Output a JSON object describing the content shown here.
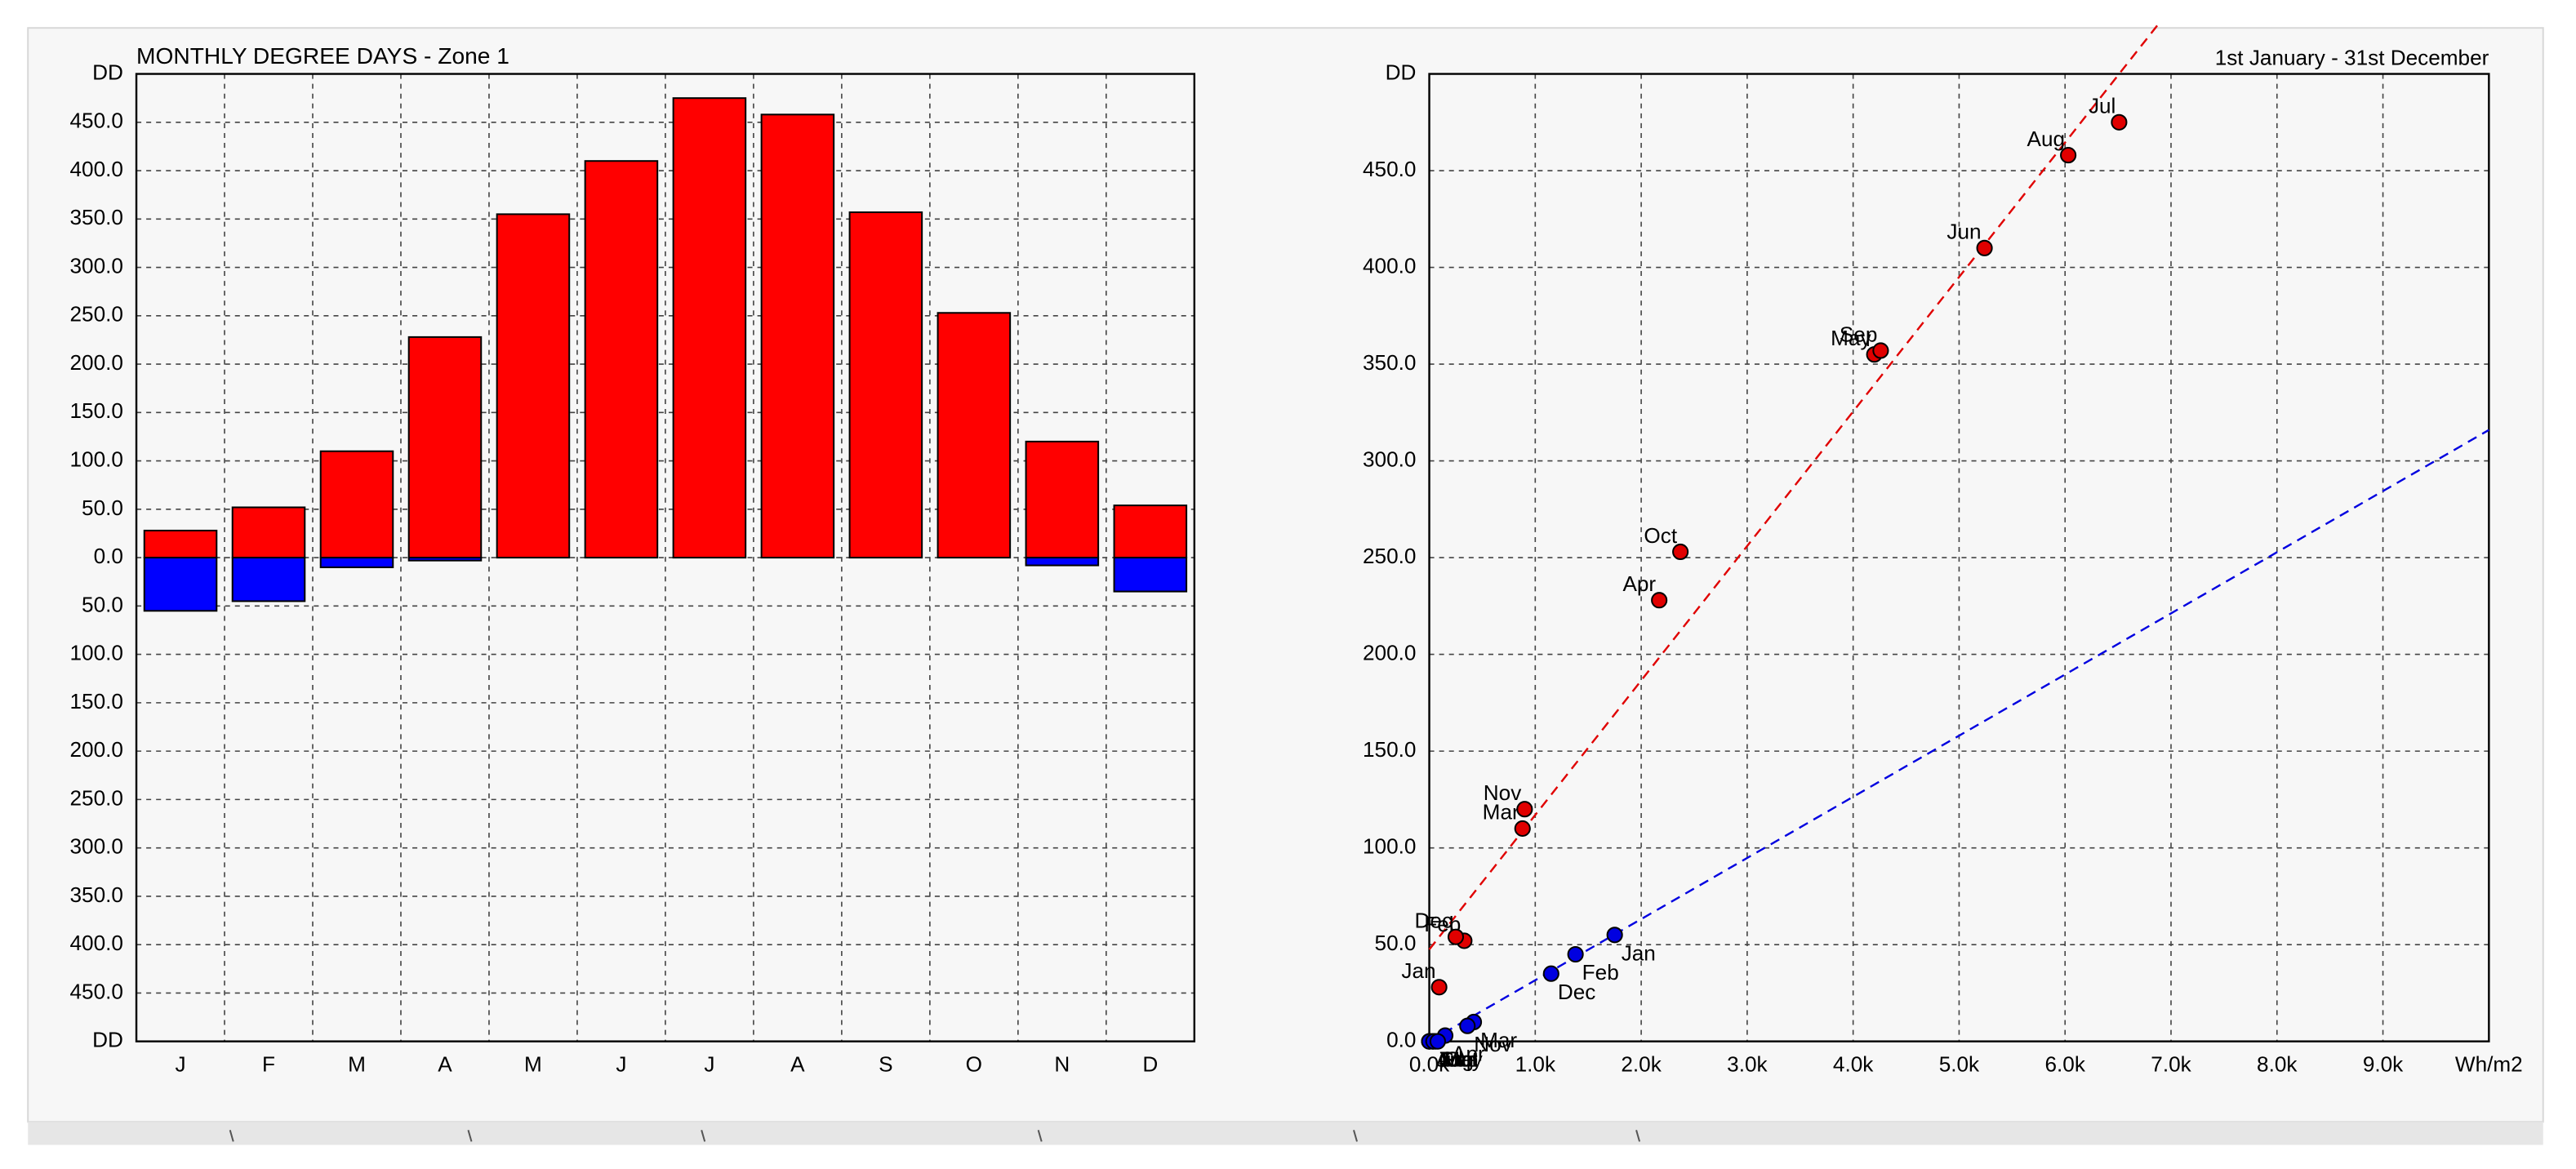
{
  "chart_data": [
    {
      "type": "bar",
      "title": "MONTHLY DEGREE DAYS - Zone 1",
      "categories": [
        "J",
        "F",
        "M",
        "A",
        "M",
        "J",
        "J",
        "A",
        "S",
        "O",
        "N",
        "D"
      ],
      "series": [
        {
          "color": "#ff0000",
          "values": [
            28,
            52,
            110,
            228,
            355,
            410,
            475,
            458,
            357,
            253,
            120,
            54
          ]
        },
        {
          "color": "#0000ff",
          "values": [
            -55,
            -45,
            -10,
            -3,
            0,
            0,
            0,
            0,
            0,
            0,
            -8,
            -35
          ]
        }
      ],
      "ylim": [
        -500,
        500
      ],
      "yticks": [
        {
          "value": 500,
          "label": "DD"
        },
        {
          "value": 450,
          "label": "450.0"
        },
        {
          "value": 400,
          "label": "400.0"
        },
        {
          "value": 350,
          "label": "350.0"
        },
        {
          "value": 300,
          "label": "300.0"
        },
        {
          "value": 250,
          "label": "250.0"
        },
        {
          "value": 200,
          "label": "200.0"
        },
        {
          "value": 150,
          "label": "150.0"
        },
        {
          "value": 100,
          "label": "100.0"
        },
        {
          "value": 50,
          "label": "50.0"
        },
        {
          "value": 0,
          "label": "0.0"
        },
        {
          "value": -50,
          "label": "50.0"
        },
        {
          "value": -100,
          "label": "100.0"
        },
        {
          "value": -150,
          "label": "150.0"
        },
        {
          "value": -200,
          "label": "200.0"
        },
        {
          "value": -250,
          "label": "250.0"
        },
        {
          "value": -300,
          "label": "300.0"
        },
        {
          "value": -350,
          "label": "350.0"
        },
        {
          "value": -400,
          "label": "400.0"
        },
        {
          "value": -450,
          "label": "450.0"
        },
        {
          "value": -500,
          "label": "DD"
        }
      ],
      "grid": true
    },
    {
      "type": "scatter",
      "title": "1st January - 31st December",
      "xlim": [
        0,
        10000
      ],
      "xticks": [
        {
          "value": 0,
          "label": "0.0k"
        },
        {
          "value": 1000,
          "label": "1.0k"
        },
        {
          "value": 2000,
          "label": "2.0k"
        },
        {
          "value": 3000,
          "label": "3.0k"
        },
        {
          "value": 4000,
          "label": "4.0k"
        },
        {
          "value": 5000,
          "label": "5.0k"
        },
        {
          "value": 6000,
          "label": "6.0k"
        },
        {
          "value": 7000,
          "label": "7.0k"
        },
        {
          "value": 8000,
          "label": "8.0k"
        },
        {
          "value": 9000,
          "label": "9.0k"
        },
        {
          "value": 10000,
          "label": "Wh/m2"
        }
      ],
      "ylim": [
        0,
        500
      ],
      "yticks": [
        {
          "value": 0,
          "label": "0.0"
        },
        {
          "value": 50,
          "label": "50.0"
        },
        {
          "value": 100,
          "label": "100.0"
        },
        {
          "value": 150,
          "label": "150.0"
        },
        {
          "value": 200,
          "label": "200.0"
        },
        {
          "value": 250,
          "label": "250.0"
        },
        {
          "value": 300,
          "label": "300.0"
        },
        {
          "value": 350,
          "label": "350.0"
        },
        {
          "value": 400,
          "label": "400.0"
        },
        {
          "value": 450,
          "label": "450.0"
        },
        {
          "value": 500,
          "label": "DD"
        }
      ],
      "grid": true,
      "series": [
        {
          "color": "#e00000",
          "labels": [
            "Jan",
            "Feb",
            "Mar",
            "Apr",
            "May",
            "Jun",
            "Jul",
            "Aug",
            "Sep",
            "Oct",
            "Nov",
            "Dec"
          ],
          "x": [
            93,
            330,
            880,
            2170,
            4200,
            5240,
            6510,
            6030,
            4260,
            2370,
            900,
            250
          ],
          "values": [
            28,
            52,
            110,
            228,
            355,
            410,
            475,
            458,
            357,
            253,
            120,
            54
          ],
          "trend": {
            "x": [
              0,
              6870
            ],
            "values": [
              47.5,
              525
            ]
          }
        },
        {
          "color": "#0000e0",
          "labels": [
            "Jan",
            "Feb",
            "Mar",
            "Apr",
            "May",
            "Jun",
            "Jul",
            "Aug",
            "Sep",
            "Oct",
            "Nov",
            "Dec"
          ],
          "x": [
            1750,
            1380,
            420,
            150,
            60,
            30,
            0,
            0,
            40,
            80,
            360,
            1150
          ],
          "values": [
            55,
            45,
            10,
            3,
            0,
            0,
            0,
            0,
            0,
            0,
            8,
            35
          ],
          "trend": {
            "x": [
              0,
              10000
            ],
            "values": [
              0,
              316
            ]
          }
        }
      ]
    }
  ]
}
